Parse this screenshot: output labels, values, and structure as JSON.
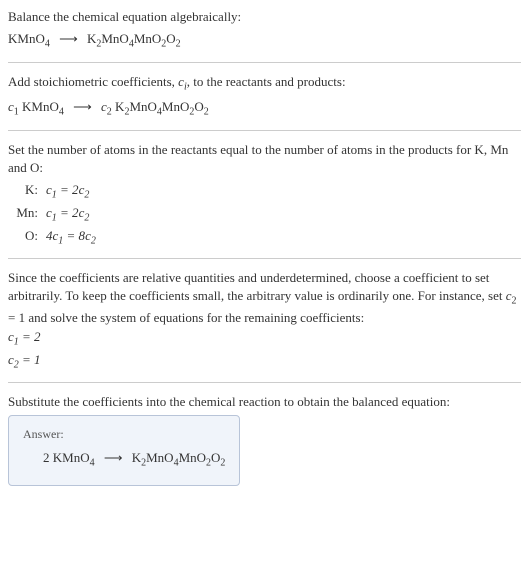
{
  "intro": {
    "line1": "Balance the chemical equation algebraically:",
    "reactant": "KMnO",
    "reactant_sub": "4",
    "product": "K",
    "product_sub1": "2",
    "product_mid1": "MnO",
    "product_sub2": "4",
    "product_mid2": "MnO",
    "product_sub3": "2",
    "product_mid3": "O",
    "product_sub4": "2"
  },
  "step1": {
    "text_a": "Add stoichiometric coefficients, ",
    "ci": "c",
    "ci_sub": "i",
    "text_b": ", to the reactants and products:",
    "c1": "c",
    "c1_sub": "1",
    "reactant": " KMnO",
    "reactant_sub": "4",
    "c2": "c",
    "c2_sub": "2",
    "product": " K",
    "p_sub1": "2",
    "p_mid1": "MnO",
    "p_sub2": "4",
    "p_mid2": "MnO",
    "p_sub3": "2",
    "p_mid3": "O",
    "p_sub4": "2"
  },
  "step2": {
    "text": "Set the number of atoms in the reactants equal to the number of atoms in the products for K, Mn and O:",
    "rows": [
      {
        "label": "K:",
        "lhs_c": "c",
        "lhs_s": "1",
        "eq": " = 2",
        "rhs_c": "c",
        "rhs_s": "2"
      },
      {
        "label": "Mn:",
        "lhs_c": "c",
        "lhs_s": "1",
        "eq": " = 2",
        "rhs_c": "c",
        "rhs_s": "2"
      },
      {
        "label": "O:",
        "pre": "4",
        "lhs_c": "c",
        "lhs_s": "1",
        "eq": " = 8",
        "rhs_c": "c",
        "rhs_s": "2"
      }
    ]
  },
  "step3": {
    "text_a": "Since the coefficients are relative quantities and underdetermined, choose a coefficient to set arbitrarily. To keep the coefficients small, the arbitrary value is ordinarily one. For instance, set ",
    "c2": "c",
    "c2_sub": "2",
    "text_b": " = 1 and solve the system of equations for the remaining coefficients:",
    "coeffs": [
      {
        "c": "c",
        "s": "1",
        "val": " = 2"
      },
      {
        "c": "c",
        "s": "2",
        "val": " = 1"
      }
    ]
  },
  "step4": {
    "text": "Substitute the coefficients into the chemical reaction to obtain the balanced equation:"
  },
  "answer": {
    "label": "Answer:",
    "lhs_n": "2 KMnO",
    "lhs_sub": "4",
    "rhs": "K",
    "r_sub1": "2",
    "r_mid1": "MnO",
    "r_sub2": "4",
    "r_mid2": "MnO",
    "r_sub3": "2",
    "r_mid3": "O",
    "r_sub4": "2"
  },
  "arrow": "⟶"
}
